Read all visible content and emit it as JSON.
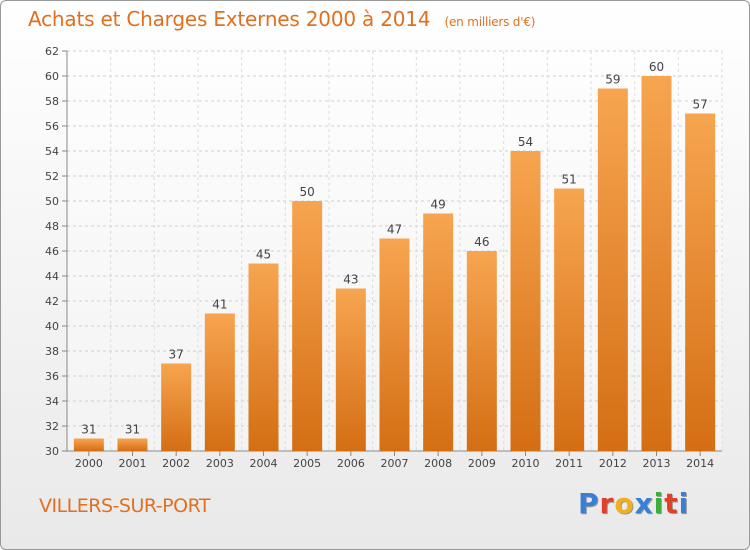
{
  "header": {
    "title": "Achats et Charges Externes 2000 à 2014",
    "unit": "(en milliers d'€)"
  },
  "footer": {
    "commune": "VILLERS-SUR-PORT",
    "brand": "Proxiti",
    "brand_colors": [
      "#3b7fd4",
      "#e0402a",
      "#f0b020",
      "#3b7fd4",
      "#3baf3b",
      "#e0402a",
      "#3b7fd4"
    ]
  },
  "chart_data": {
    "type": "bar",
    "title": "Achats et Charges Externes 2000 à 2014",
    "subtitle": "(en milliers d'€)",
    "categories": [
      "2000",
      "2001",
      "2002",
      "2003",
      "2004",
      "2005",
      "2006",
      "2007",
      "2008",
      "2009",
      "2010",
      "2011",
      "2012",
      "2013",
      "2014"
    ],
    "values": [
      31,
      31,
      37,
      41,
      45,
      50,
      43,
      47,
      49,
      46,
      54,
      51,
      59,
      60,
      57
    ],
    "ylim": [
      30,
      62
    ],
    "yticks": [
      30,
      32,
      34,
      36,
      38,
      40,
      42,
      44,
      46,
      48,
      50,
      52,
      54,
      56,
      58,
      60,
      62
    ],
    "grid": true,
    "legend": "none",
    "bar_color_top": "#f7a550",
    "bar_color_bottom": "#d46e14",
    "label_color": "#444444"
  }
}
